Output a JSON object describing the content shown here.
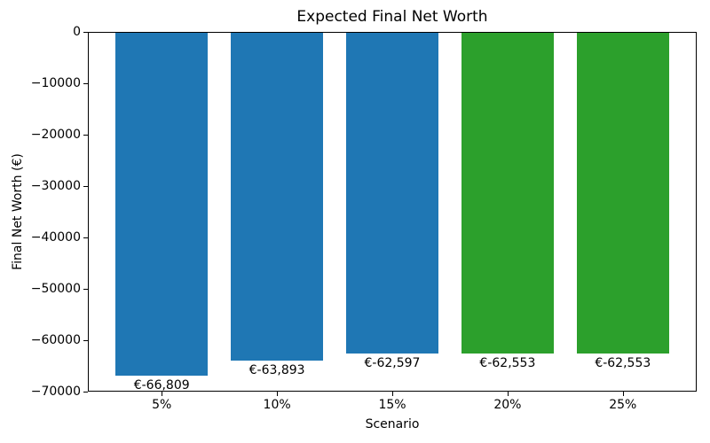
{
  "figure": {
    "background": "#ffffff"
  },
  "chart_data": {
    "type": "bar",
    "title": "Expected Final Net Worth",
    "xlabel": "Scenario",
    "ylabel": "Final Net Worth (€)",
    "categories": [
      "5%",
      "10%",
      "15%",
      "20%",
      "25%"
    ],
    "values": [
      -66809,
      -63893,
      -62597,
      -62553,
      -62553
    ],
    "bar_labels": [
      "€-66,809",
      "€-63,893",
      "€-62,597",
      "€-62,553",
      "€-62,553"
    ],
    "bar_colors": [
      "#1f77b4",
      "#1f77b4",
      "#1f77b4",
      "#2ca02c",
      "#2ca02c"
    ],
    "ylim": [
      -70000,
      0
    ],
    "yticks": [
      0,
      -10000,
      -20000,
      -30000,
      -40000,
      -50000,
      -60000,
      -70000
    ],
    "ytick_labels": [
      "0",
      "−10000",
      "−20000",
      "−30000",
      "−40000",
      "−50000",
      "−60000",
      "−70000"
    ],
    "grid": false,
    "legend": "none",
    "background": "#ffffff",
    "text_color": "#000000"
  }
}
